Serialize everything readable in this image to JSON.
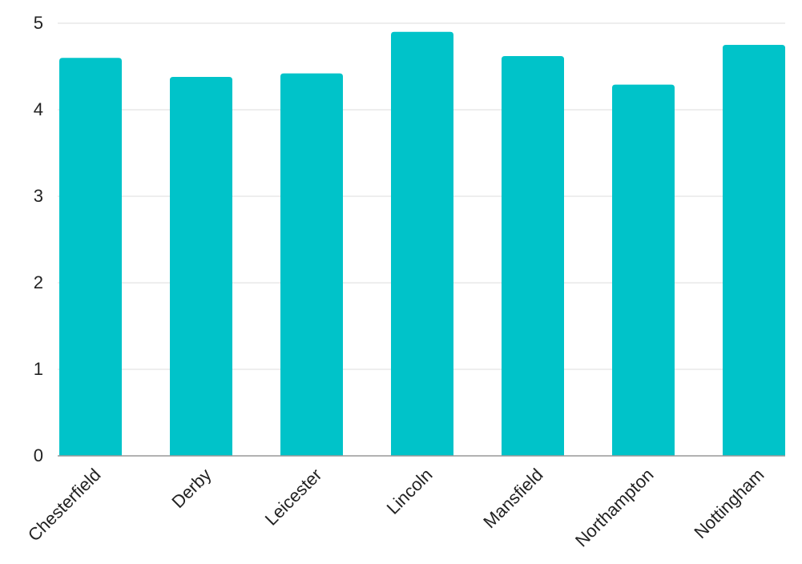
{
  "chart_data": {
    "type": "bar",
    "title": "",
    "xlabel": "",
    "ylabel": "",
    "categories": [
      "Chesterfield",
      "Derby",
      "Leicester",
      "Lincoln",
      "Mansfield",
      "Northampton",
      "Nottingham"
    ],
    "values": [
      4.6,
      4.38,
      4.42,
      4.9,
      4.62,
      4.29,
      4.75
    ],
    "ylim": [
      0,
      5
    ],
    "yticks": [
      "0",
      "1",
      "2",
      "3",
      "4",
      "5"
    ],
    "grid": true,
    "legend": "none",
    "colors": {
      "bar": "#00C3C9",
      "grid": "#DDDDDD",
      "axis": "#999999",
      "text": "#222222"
    }
  }
}
